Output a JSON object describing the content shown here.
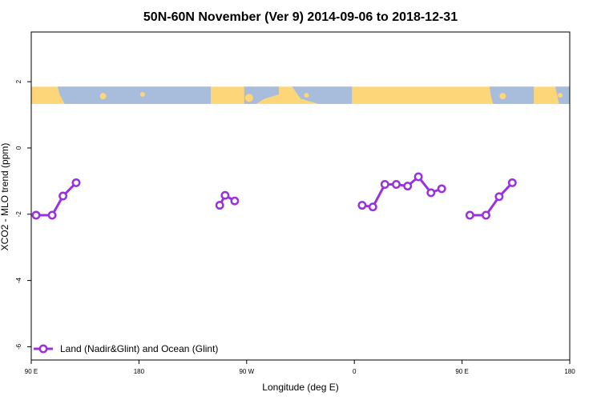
{
  "chart_data": {
    "type": "line",
    "title": "50N-60N November (Ver 9)   2014-09-06 to 2018-12-31",
    "xlabel": "Longitude (deg E)",
    "ylabel": "XCO2 - MLO trend (ppm)",
    "xlim": [
      90,
      540
    ],
    "ylim": [
      -6.4,
      3.5
    ],
    "x_ticks": [
      {
        "value": 90,
        "label": "90 E"
      },
      {
        "value": 180,
        "label": "180"
      },
      {
        "value": 270,
        "label": "90 W"
      },
      {
        "value": 360,
        "label": "0"
      },
      {
        "value": 450,
        "label": "90 E"
      },
      {
        "value": 540,
        "label": "180"
      }
    ],
    "y_ticks": [
      {
        "value": 2,
        "label": "2"
      },
      {
        "value": 0,
        "label": "0"
      },
      {
        "value": -2,
        "label": "-2"
      },
      {
        "value": -4,
        "label": "-4"
      },
      {
        "value": -6,
        "label": "-6"
      }
    ],
    "grid": false,
    "legend_position": "bottom-left",
    "map_band": {
      "y_top": 1.85,
      "y_bottom": 1.33,
      "ocean_color": "#a8bcdc",
      "land_color": "#fdd67a"
    },
    "series": [
      {
        "name": "Land (Nadir&Glint) and Ocean (Glint)",
        "color": "#9b30e0",
        "segments": [
          {
            "x": [
              94,
              107.5,
              116.5,
              127.5
            ],
            "y": [
              -2.03,
              -2.03,
              -1.45,
              -1.05
            ]
          },
          {
            "x": [
              247.5,
              252,
              260
            ],
            "y": [
              -1.73,
              -1.43,
              -1.6
            ]
          },
          {
            "x": [
              366.5,
              375.5,
              385.5,
              395,
              404.5,
              413.5,
              424,
              433
            ],
            "y": [
              -1.73,
              -1.78,
              -1.1,
              -1.1,
              -1.15,
              -0.87,
              -1.35,
              -1.23
            ]
          },
          {
            "x": [
              456.5,
              470,
              481,
              492
            ],
            "y": [
              -2.03,
              -2.03,
              -1.47,
              -1.05
            ]
          }
        ]
      }
    ]
  }
}
